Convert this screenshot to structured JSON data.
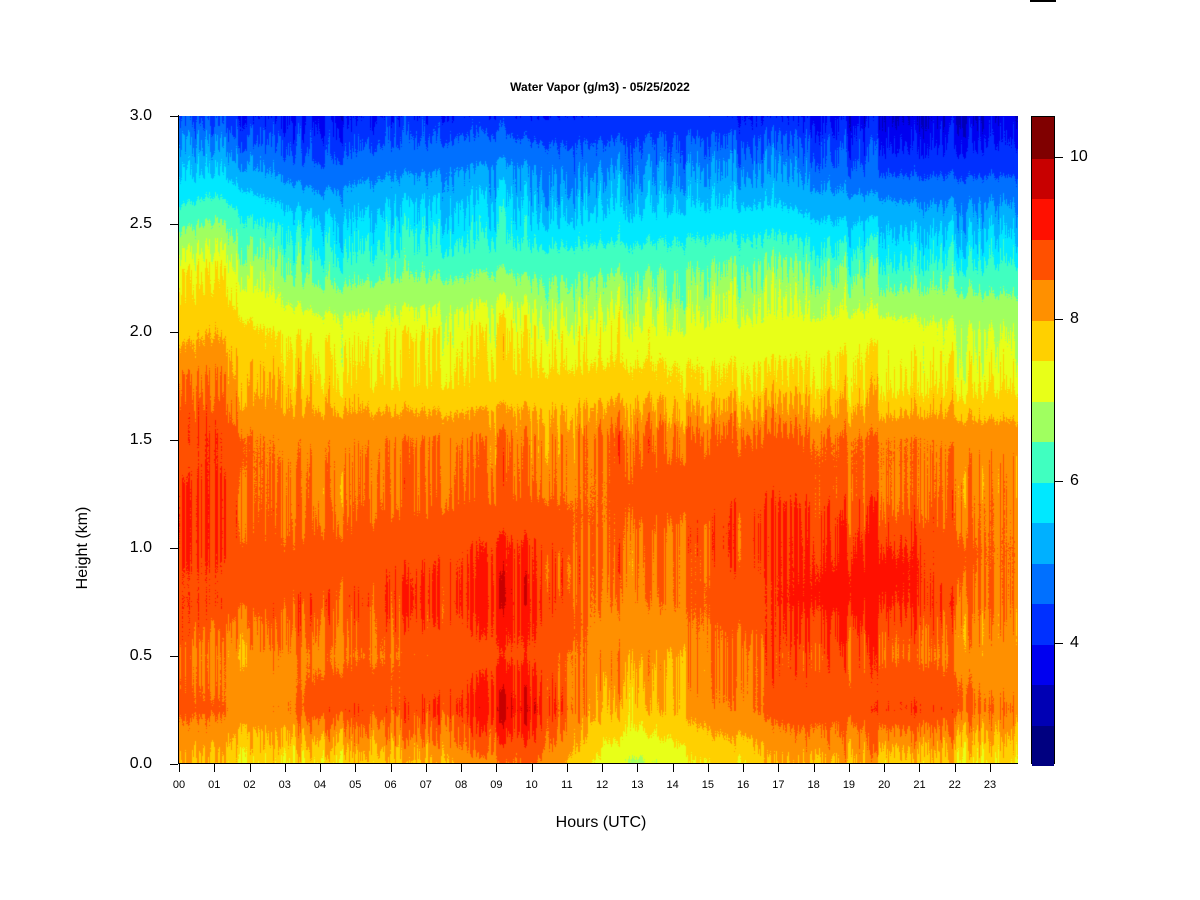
{
  "chart_data": {
    "type": "heatmap",
    "title": "Water Vapor (g/m3) - 05/25/2022",
    "xlabel": "Hours (UTC)",
    "ylabel": "Height (km)",
    "xlim": [
      0,
      23.8
    ],
    "ylim": [
      0,
      3.0
    ],
    "x_tick_labels": [
      "00",
      "01",
      "02",
      "03",
      "04",
      "05",
      "06",
      "07",
      "08",
      "09",
      "10",
      "11",
      "12",
      "13",
      "14",
      "15",
      "16",
      "17",
      "18",
      "19",
      "20",
      "21",
      "22",
      "23"
    ],
    "y_tick_values": [
      0.0,
      0.5,
      1.0,
      1.5,
      2.0,
      2.5,
      3.0
    ],
    "y_tick_labels": [
      "0.0",
      "0.5",
      "1.0",
      "1.5",
      "2.0",
      "2.5",
      "3.0"
    ],
    "colorbar": {
      "range": [
        2.5,
        10.5
      ],
      "step": 0.5,
      "tick_values": [
        4,
        6,
        8,
        10
      ],
      "tick_labels": [
        "4",
        "6",
        "8",
        "10"
      ],
      "colors": [
        "#000080",
        "#0000B4",
        "#0000F0",
        "#0030FF",
        "#0070FF",
        "#00B0FF",
        "#00E8FF",
        "#40FFC0",
        "#A0FF60",
        "#E8FF18",
        "#FFD000",
        "#FF9000",
        "#FF5000",
        "#FF1000",
        "#C80000",
        "#800000"
      ]
    },
    "grid": {
      "hours": [
        0,
        1,
        2,
        3,
        4,
        5,
        6,
        7,
        8,
        9,
        10,
        11,
        12,
        13,
        14,
        15,
        16,
        17,
        18,
        19,
        20,
        21,
        22,
        23
      ],
      "heights_km": [
        0.0,
        0.25,
        0.5,
        0.75,
        1.0,
        1.25,
        1.5,
        1.75,
        2.0,
        2.25,
        2.5,
        2.75,
        3.0
      ],
      "values": [
        [
          7.9,
          7.9,
          7.6,
          7.5,
          7.6,
          7.8,
          7.8,
          7.9,
          8.2,
          8.4,
          8.6,
          8.0,
          7.3,
          6.9,
          7.2,
          7.6,
          7.6,
          7.9,
          8.0,
          8.0,
          7.9,
          7.9,
          7.8,
          7.6
        ],
        [
          8.6,
          8.6,
          8.3,
          8.4,
          8.8,
          8.9,
          8.7,
          8.8,
          9.0,
          9.3,
          9.4,
          8.8,
          7.9,
          7.8,
          8.0,
          8.3,
          8.4,
          8.7,
          8.8,
          8.7,
          9.0,
          9.0,
          8.8,
          8.5
        ],
        [
          8.5,
          8.3,
          8.2,
          8.3,
          8.4,
          8.5,
          8.5,
          8.6,
          8.7,
          8.9,
          8.9,
          8.6,
          8.3,
          8.2,
          8.2,
          8.4,
          8.5,
          8.6,
          8.7,
          8.7,
          8.7,
          8.6,
          8.4,
          8.2
        ],
        [
          8.9,
          8.9,
          8.7,
          8.7,
          8.8,
          8.8,
          8.8,
          8.9,
          9.0,
          9.2,
          9.2,
          8.8,
          8.4,
          8.4,
          8.5,
          8.6,
          8.8,
          9.0,
          9.1,
          9.2,
          9.2,
          9.1,
          8.8,
          8.5
        ],
        [
          8.9,
          9.0,
          8.7,
          8.6,
          8.7,
          8.7,
          8.8,
          8.8,
          8.9,
          9.0,
          9.0,
          8.8,
          8.5,
          8.5,
          8.6,
          8.7,
          8.8,
          8.9,
          9.0,
          9.0,
          9.1,
          9.0,
          8.7,
          8.5
        ],
        [
          8.9,
          9.0,
          8.6,
          8.4,
          8.4,
          8.5,
          8.5,
          8.5,
          8.6,
          8.6,
          8.6,
          8.5,
          8.5,
          8.7,
          8.8,
          8.8,
          8.8,
          8.8,
          8.7,
          8.6,
          8.6,
          8.6,
          8.6,
          8.4
        ],
        [
          8.8,
          9.0,
          8.5,
          8.4,
          8.4,
          8.4,
          8.4,
          8.4,
          8.4,
          8.4,
          8.4,
          8.4,
          8.5,
          8.6,
          8.6,
          8.6,
          8.6,
          8.6,
          8.5,
          8.5,
          8.5,
          8.5,
          8.4,
          8.3
        ],
        [
          8.4,
          8.5,
          8.0,
          7.8,
          7.7,
          7.7,
          7.6,
          7.6,
          7.6,
          7.7,
          7.7,
          7.7,
          7.7,
          7.7,
          7.7,
          7.6,
          7.6,
          7.6,
          7.6,
          7.6,
          7.6,
          7.6,
          7.6,
          7.5
        ],
        [
          7.8,
          8.0,
          7.6,
          7.4,
          7.3,
          7.3,
          7.3,
          7.3,
          7.3,
          7.4,
          7.4,
          7.3,
          7.2,
          7.2,
          7.2,
          7.2,
          7.2,
          7.2,
          7.2,
          7.3,
          7.3,
          7.2,
          7.1,
          7.0
        ],
        [
          7.3,
          7.6,
          7.0,
          6.6,
          6.4,
          6.4,
          6.5,
          6.5,
          6.5,
          6.6,
          6.5,
          6.5,
          6.5,
          6.5,
          6.5,
          6.6,
          6.6,
          6.6,
          6.5,
          6.5,
          6.4,
          6.4,
          6.4,
          6.3
        ],
        [
          6.3,
          6.6,
          6.1,
          5.8,
          5.6,
          5.6,
          5.7,
          5.7,
          5.7,
          5.8,
          5.7,
          5.7,
          5.7,
          5.7,
          5.8,
          5.8,
          5.8,
          5.8,
          5.6,
          5.5,
          5.5,
          5.4,
          5.4,
          5.4
        ],
        [
          5.3,
          5.5,
          5.1,
          4.8,
          4.6,
          4.8,
          4.9,
          4.9,
          5.0,
          5.1,
          5.0,
          4.9,
          4.9,
          4.9,
          5.0,
          5.0,
          4.9,
          4.9,
          4.7,
          4.6,
          4.5,
          4.4,
          4.4,
          4.4
        ],
        [
          4.4,
          4.4,
          4.1,
          3.9,
          3.9,
          4.0,
          4.1,
          4.1,
          4.2,
          4.2,
          4.1,
          4.1,
          4.1,
          4.1,
          4.2,
          4.1,
          4.0,
          4.0,
          3.9,
          3.8,
          3.7,
          3.6,
          3.7,
          3.7
        ]
      ]
    }
  }
}
